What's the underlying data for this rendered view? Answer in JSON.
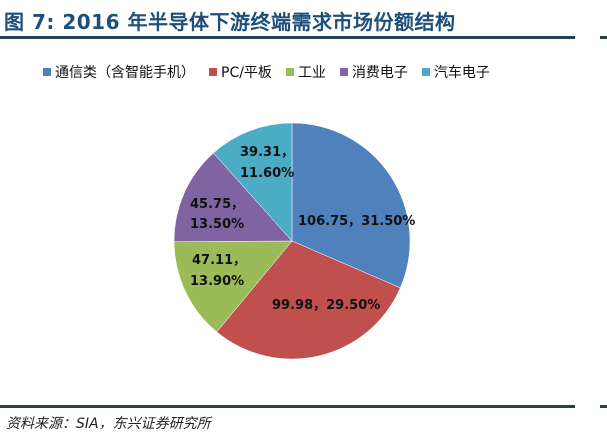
{
  "title": "图 7: 2016 年半导体下游终端需求市场份额结构",
  "source": "资料来源：SIA，东兴证券研究所",
  "chart_data": {
    "type": "pie",
    "title": "图 7: 2016 年半导体下游终端需求市场份额结构",
    "legend_position": "top",
    "categories": [
      "通信类（含智能手机）",
      "PC/平板",
      "工业",
      "消费电子",
      "汽车电子"
    ],
    "values": [
      106.75,
      99.98,
      47.11,
      45.75,
      39.31
    ],
    "percentages": [
      31.5,
      29.5,
      13.9,
      13.5,
      11.6
    ],
    "colors": [
      "#4f81bd",
      "#c0504d",
      "#9bbb59",
      "#8064a2",
      "#4bacc6"
    ],
    "data_labels": [
      "106.75，31.50%",
      "99.98，29.50%",
      "47.11，13.90%",
      "45.75，13.50%",
      "39.31，11.60%"
    ],
    "start_angle_deg": 0,
    "direction": "clockwise"
  },
  "legend": [
    {
      "label": "通信类（含智能手机）",
      "color": "#4f81bd"
    },
    {
      "label": "PC/平板",
      "color": "#c0504d"
    },
    {
      "label": "工业",
      "color": "#9bbb59"
    },
    {
      "label": "消费电子",
      "color": "#8064a2"
    },
    {
      "label": "汽车电子",
      "color": "#4bacc6"
    }
  ],
  "labels": {
    "comm_l1": "106.75，31.50%",
    "pc_l1": "99.98，29.50%",
    "ind_l1": "47.11，",
    "ind_l2": "13.90%",
    "cons_l1": "45.75，",
    "cons_l2": "13.50%",
    "auto_l1": "39.31，",
    "auto_l2": "11.60%"
  }
}
